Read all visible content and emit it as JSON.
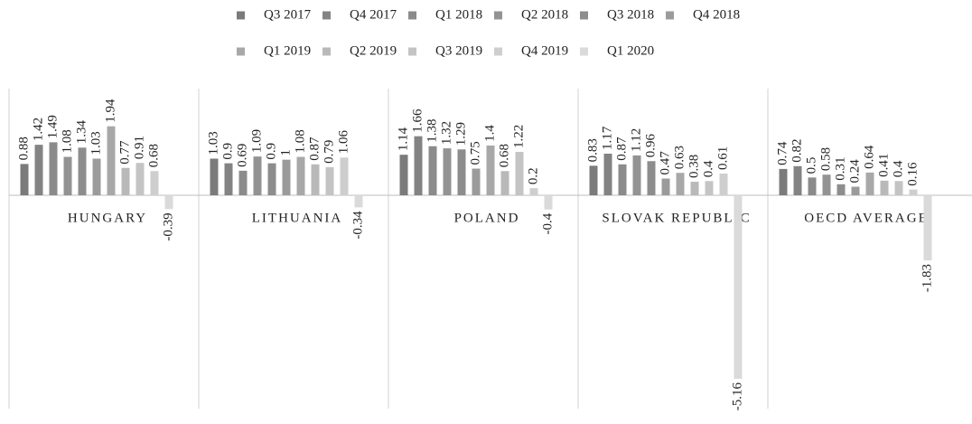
{
  "chart_data": {
    "type": "bar",
    "categories": [
      "HUNGARY",
      "LITHUANIA",
      "POLAND",
      "SLOVAK REPUBLIC",
      "OECD AVERAGE"
    ],
    "series": [
      {
        "name": "Q3 2017",
        "color": "#7b7b7b",
        "values": [
          0.88,
          1.03,
          1.14,
          0.83,
          0.74
        ]
      },
      {
        "name": "Q4 2017",
        "color": "#838383",
        "values": [
          1.42,
          0.9,
          1.66,
          1.17,
          0.82
        ]
      },
      {
        "name": "Q1 2018",
        "color": "#8b8b8b",
        "values": [
          1.49,
          0.69,
          1.38,
          0.87,
          0.5
        ]
      },
      {
        "name": "Q2 2018",
        "color": "#939393",
        "values": [
          1.08,
          1.09,
          1.32,
          1.12,
          0.58
        ]
      },
      {
        "name": "Q3 2018",
        "color": "#8d8d8d",
        "values": [
          1.34,
          0.9,
          1.29,
          0.96,
          0.31
        ]
      },
      {
        "name": "Q4 2018",
        "color": "#9b9b9b",
        "values": [
          1.03,
          1,
          0.75,
          0.47,
          0.24
        ]
      },
      {
        "name": "Q1 2019",
        "color": "#a8a8a8",
        "values": [
          1.94,
          1.08,
          1.4,
          0.63,
          0.64
        ]
      },
      {
        "name": "Q2 2019",
        "color": "#b9b9b9",
        "values": [
          0.77,
          0.87,
          0.68,
          0.38,
          0.41
        ]
      },
      {
        "name": "Q3 2019",
        "color": "#c4c4c4",
        "values": [
          0.91,
          0.79,
          1.22,
          0.4,
          0.4
        ]
      },
      {
        "name": "Q4 2019",
        "color": "#cecece",
        "values": [
          0.68,
          1.06,
          0.2,
          0.61,
          0.16
        ]
      },
      {
        "name": "Q1 2020",
        "color": "#dadada",
        "values": [
          -0.39,
          -0.34,
          -0.4,
          -5.16,
          -1.83
        ]
      }
    ],
    "ylim": [
      -6,
      3
    ]
  }
}
